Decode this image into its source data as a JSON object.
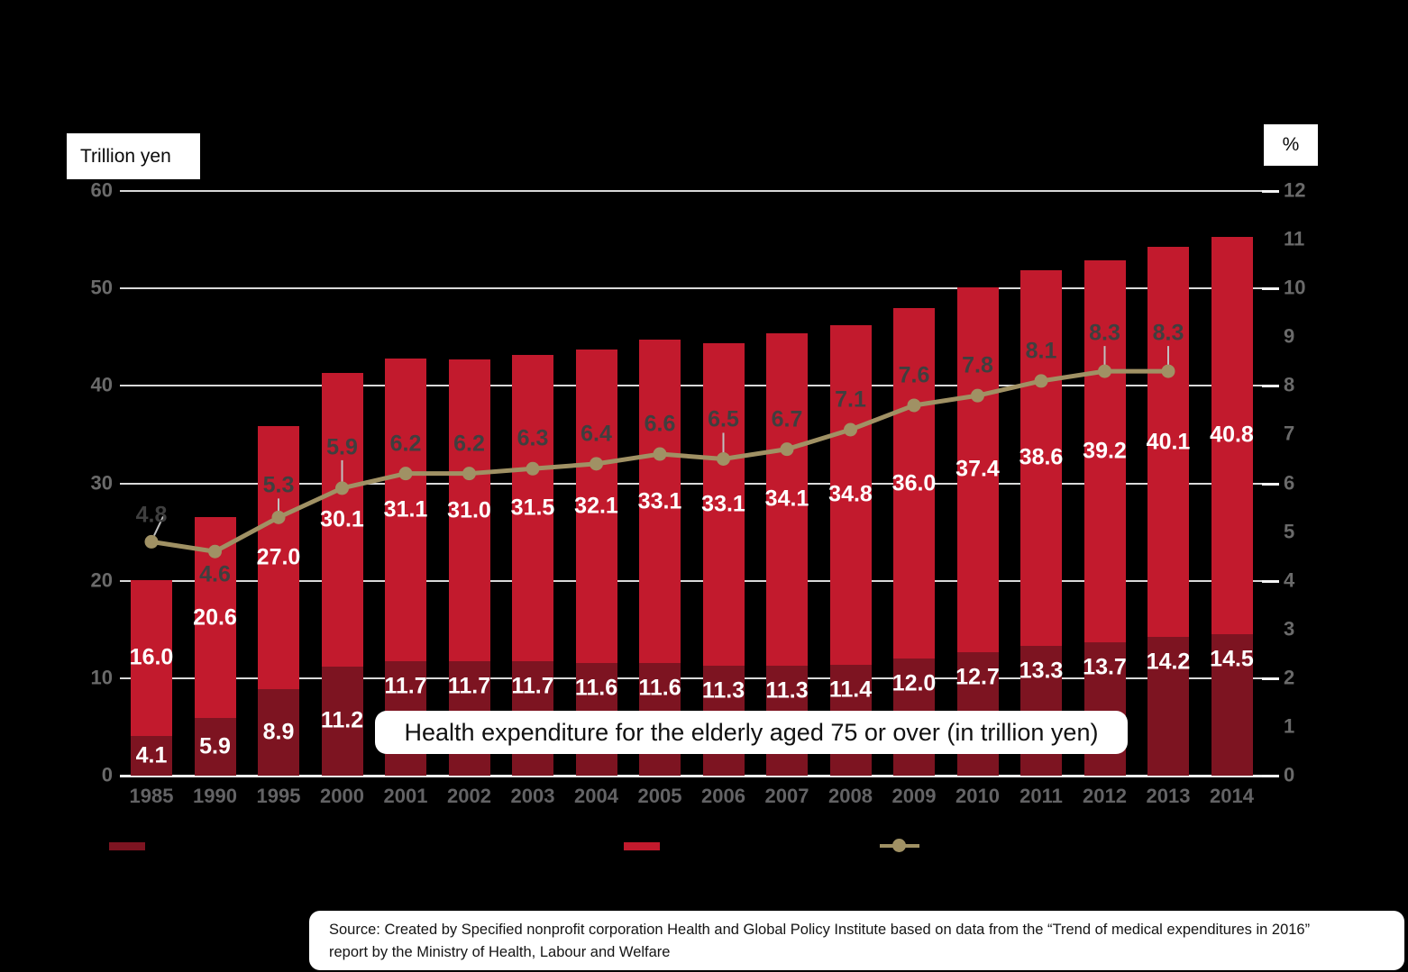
{
  "axes": {
    "left": {
      "title": "Trillion yen",
      "range": [
        0,
        60
      ],
      "tick_labels": [
        "0",
        "10",
        "20",
        "30",
        "40",
        "50",
        "60"
      ]
    },
    "right": {
      "title": "%",
      "range": [
        0,
        12
      ],
      "tick_labels": [
        "0",
        "1",
        "2",
        "3",
        "4",
        "5",
        "6",
        "7",
        "8",
        "9",
        "10",
        "11",
        "12"
      ],
      "tick_marks_at": [
        0,
        2,
        4,
        6,
        8,
        10,
        12
      ]
    },
    "x": {
      "labels": [
        "1985",
        "1990",
        "1995",
        "2000",
        "2001",
        "2002",
        "2003",
        "2004",
        "2005",
        "2006",
        "2007",
        "2008",
        "2009",
        "2010",
        "2011",
        "2012",
        "2013",
        "2014"
      ]
    }
  },
  "chart_data": {
    "type": "bar",
    "subtype": "stacked-bars-with-line",
    "categories": [
      "1985",
      "1990",
      "1995",
      "2000",
      "2001",
      "2002",
      "2003",
      "2004",
      "2005",
      "2006",
      "2007",
      "2008",
      "2009",
      "2010",
      "2011",
      "2012",
      "2013",
      "2014"
    ],
    "series": [
      {
        "name": "bar-upper-segment-trillion-yen",
        "type": "bar",
        "stack": "upper",
        "color": "#C21A2D",
        "values": [
          16.0,
          20.6,
          27.0,
          30.1,
          31.1,
          31.0,
          31.5,
          32.1,
          33.1,
          33.1,
          34.1,
          34.8,
          36.0,
          37.4,
          38.6,
          39.2,
          40.1,
          40.8
        ]
      },
      {
        "name": "bar-lower-segment-trillion-yen",
        "type": "bar",
        "stack": "lower",
        "color": "#7D1421",
        "values": [
          4.1,
          5.9,
          8.9,
          11.2,
          11.7,
          11.7,
          11.7,
          11.6,
          11.6,
          11.3,
          11.3,
          11.4,
          12.0,
          12.7,
          13.3,
          13.7,
          14.2,
          14.5
        ]
      },
      {
        "name": "percent-line-right-axis",
        "type": "line",
        "color": "#A09164",
        "values": [
          4.8,
          4.6,
          5.3,
          5.9,
          6.2,
          6.2,
          6.3,
          6.4,
          6.6,
          6.5,
          6.7,
          7.1,
          7.6,
          7.8,
          8.1,
          8.3,
          8.3,
          null
        ]
      }
    ],
    "left_axis_range": [
      0,
      60
    ],
    "right_axis_range": [
      0,
      12
    ],
    "grid": true,
    "legend_position": "bottom"
  },
  "annotation": {
    "text": "Health expenditure for the elderly aged 75 or over (in trillion yen)"
  },
  "source": {
    "line1": "Source: Created by Specified nonprofit corporation Health and Global Policy Institute based on data from the “Trend of medical expenditures in 2016”",
    "line2": "report by the Ministry of Health, Labour and Welfare"
  },
  "legend": {
    "swatches": [
      {
        "kind": "bar",
        "color": "#7D1421"
      },
      {
        "kind": "bar",
        "color": "#C21A2D"
      },
      {
        "kind": "line-marker",
        "color": "#A09164"
      }
    ]
  },
  "colors": {
    "background": "#000000",
    "bar_upper": "#C21A2D",
    "bar_lower": "#7D1421",
    "line": "#A09164",
    "gridline": "#D9D9D9",
    "axis_tick_label": "#6A6A6A",
    "year_label": "#636365",
    "line_value_label": "#3F3F3F",
    "bar_value_label": "#FFFFFF",
    "leader_line": "#C0C0C0"
  }
}
